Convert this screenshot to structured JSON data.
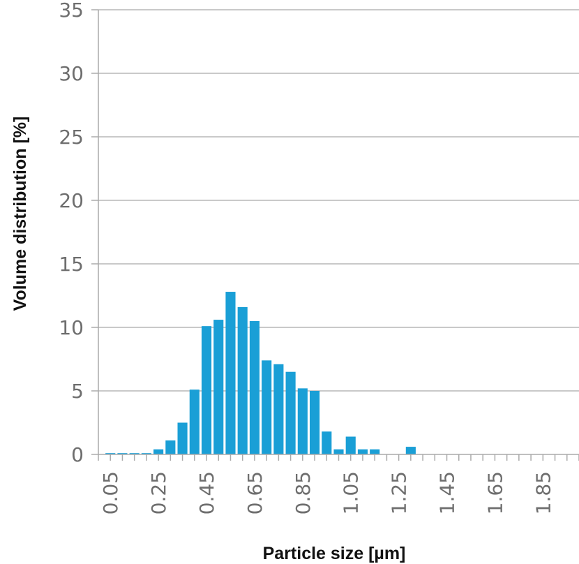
{
  "chart_data": {
    "type": "bar",
    "xlabel": "Particle size [µm]",
    "ylabel": "Volume distribution [%]",
    "ylim": [
      0,
      35
    ],
    "xlim": [
      0.0,
      2.0
    ],
    "bin_width": 0.05,
    "grid": "horizontal",
    "yticks": [
      "0",
      "5",
      "10",
      "15",
      "20",
      "25",
      "30",
      "35"
    ],
    "xtick_labels": [
      "0.05",
      "0.25",
      "0.45",
      "0.65",
      "0.85",
      "1.05",
      "1.25",
      "1.45",
      "1.65",
      "1.85"
    ],
    "x": [
      0.05,
      0.1,
      0.15,
      0.2,
      0.25,
      0.3,
      0.35,
      0.4,
      0.45,
      0.5,
      0.55,
      0.6,
      0.65,
      0.7,
      0.75,
      0.8,
      0.85,
      0.9,
      0.95,
      1.0,
      1.05,
      1.1,
      1.15,
      1.2,
      1.25,
      1.3,
      1.35,
      1.4,
      1.45,
      1.5,
      1.55,
      1.6,
      1.65,
      1.7,
      1.75,
      1.8,
      1.85,
      1.9,
      1.95
    ],
    "values": [
      0.1,
      0.1,
      0.1,
      0.1,
      0.4,
      1.1,
      2.5,
      5.1,
      10.1,
      10.6,
      12.8,
      11.6,
      10.5,
      7.4,
      7.1,
      6.5,
      5.2,
      5.0,
      1.8,
      0.4,
      1.4,
      0.4,
      0.4,
      0,
      0,
      0.6,
      0,
      0,
      0,
      0,
      0,
      0,
      0,
      0,
      0,
      0,
      0,
      0,
      0
    ],
    "colors": {
      "bar": "#1a9fd6",
      "grid": "#c9c9c9",
      "axis": "#aaaaaa"
    }
  }
}
